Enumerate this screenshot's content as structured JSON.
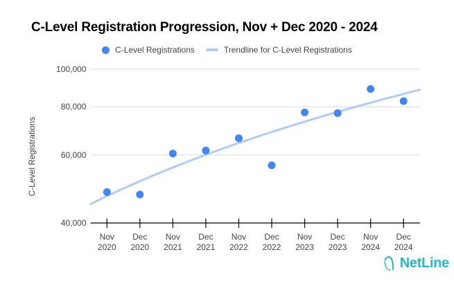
{
  "title": "C-Level Registration Progression, Nov + Dec 2020 - 2024",
  "legend": {
    "series_label": "C-Level Registrations",
    "trendline_label": "Trendline for C-Level Registrations"
  },
  "footer": {
    "brand": "NetLine"
  },
  "colors": {
    "point": "#4285f4",
    "trendline": "#aecbfa",
    "gridline": "#d9d9d9",
    "axis": "#000000",
    "label_text": "#424242",
    "title_text": "#000000",
    "brand": "#26b7cd"
  },
  "chart_data": {
    "type": "scatter",
    "title": "C-Level Registration Progression, Nov + Dec 2020 - 2024",
    "categories": [
      "Nov 2020",
      "Dec 2020",
      "Nov 2021",
      "Dec 2021",
      "Nov 2022",
      "Dec 2022",
      "Nov 2023",
      "Dec 2023",
      "Nov 2024",
      "Dec 2024"
    ],
    "series": [
      {
        "name": "C-Level Registrations",
        "values": [
          48100,
          47400,
          60500,
          61600,
          66300,
          56400,
          77300,
          77000,
          88900,
          82700
        ]
      }
    ],
    "trendline": {
      "name": "Trendline for C-Level Registrations",
      "fit": "linear"
    },
    "ylabel": "C-Level Registrations",
    "xlabel": "",
    "y_scale": "log",
    "ylim": [
      40000,
      100000
    ],
    "y_ticks": [
      40000,
      60000,
      80000,
      100000
    ],
    "grid": true,
    "legend_position": "top"
  }
}
